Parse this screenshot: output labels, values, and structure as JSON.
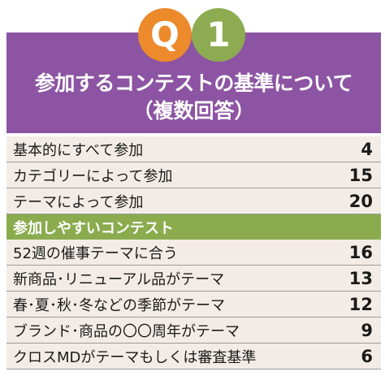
{
  "colors": {
    "header_bg": "#8c54a2",
    "badge_q": "#ec8a2c",
    "badge_number": "#8dac52",
    "row_bg": "#f3ece6",
    "section_bg": "#8aac4e"
  },
  "badges": {
    "question": "Q",
    "number": "1"
  },
  "header": {
    "title": "参加するコンテストの基準について",
    "subtitle": "（複数回答）"
  },
  "criteria": [
    {
      "label": "基本的にすべて参加",
      "value": "4"
    },
    {
      "label": "カテゴリーによって参加",
      "value": "15"
    },
    {
      "label": "テーマによって参加",
      "value": "20"
    }
  ],
  "section": {
    "title": "参加しやすいコンテスト"
  },
  "contests": [
    {
      "label": "52週の催事テーマに合う",
      "value": "16"
    },
    {
      "label": "新商品･リニューアル品がテーマ",
      "value": "13"
    },
    {
      "label": "春･夏･秋･冬などの季節がテーマ",
      "value": "12"
    },
    {
      "label": "ブランド･商品の〇〇周年がテーマ",
      "value": "9"
    },
    {
      "label": "クロスMDがテーマもしくは審査基準",
      "value": "6"
    }
  ]
}
